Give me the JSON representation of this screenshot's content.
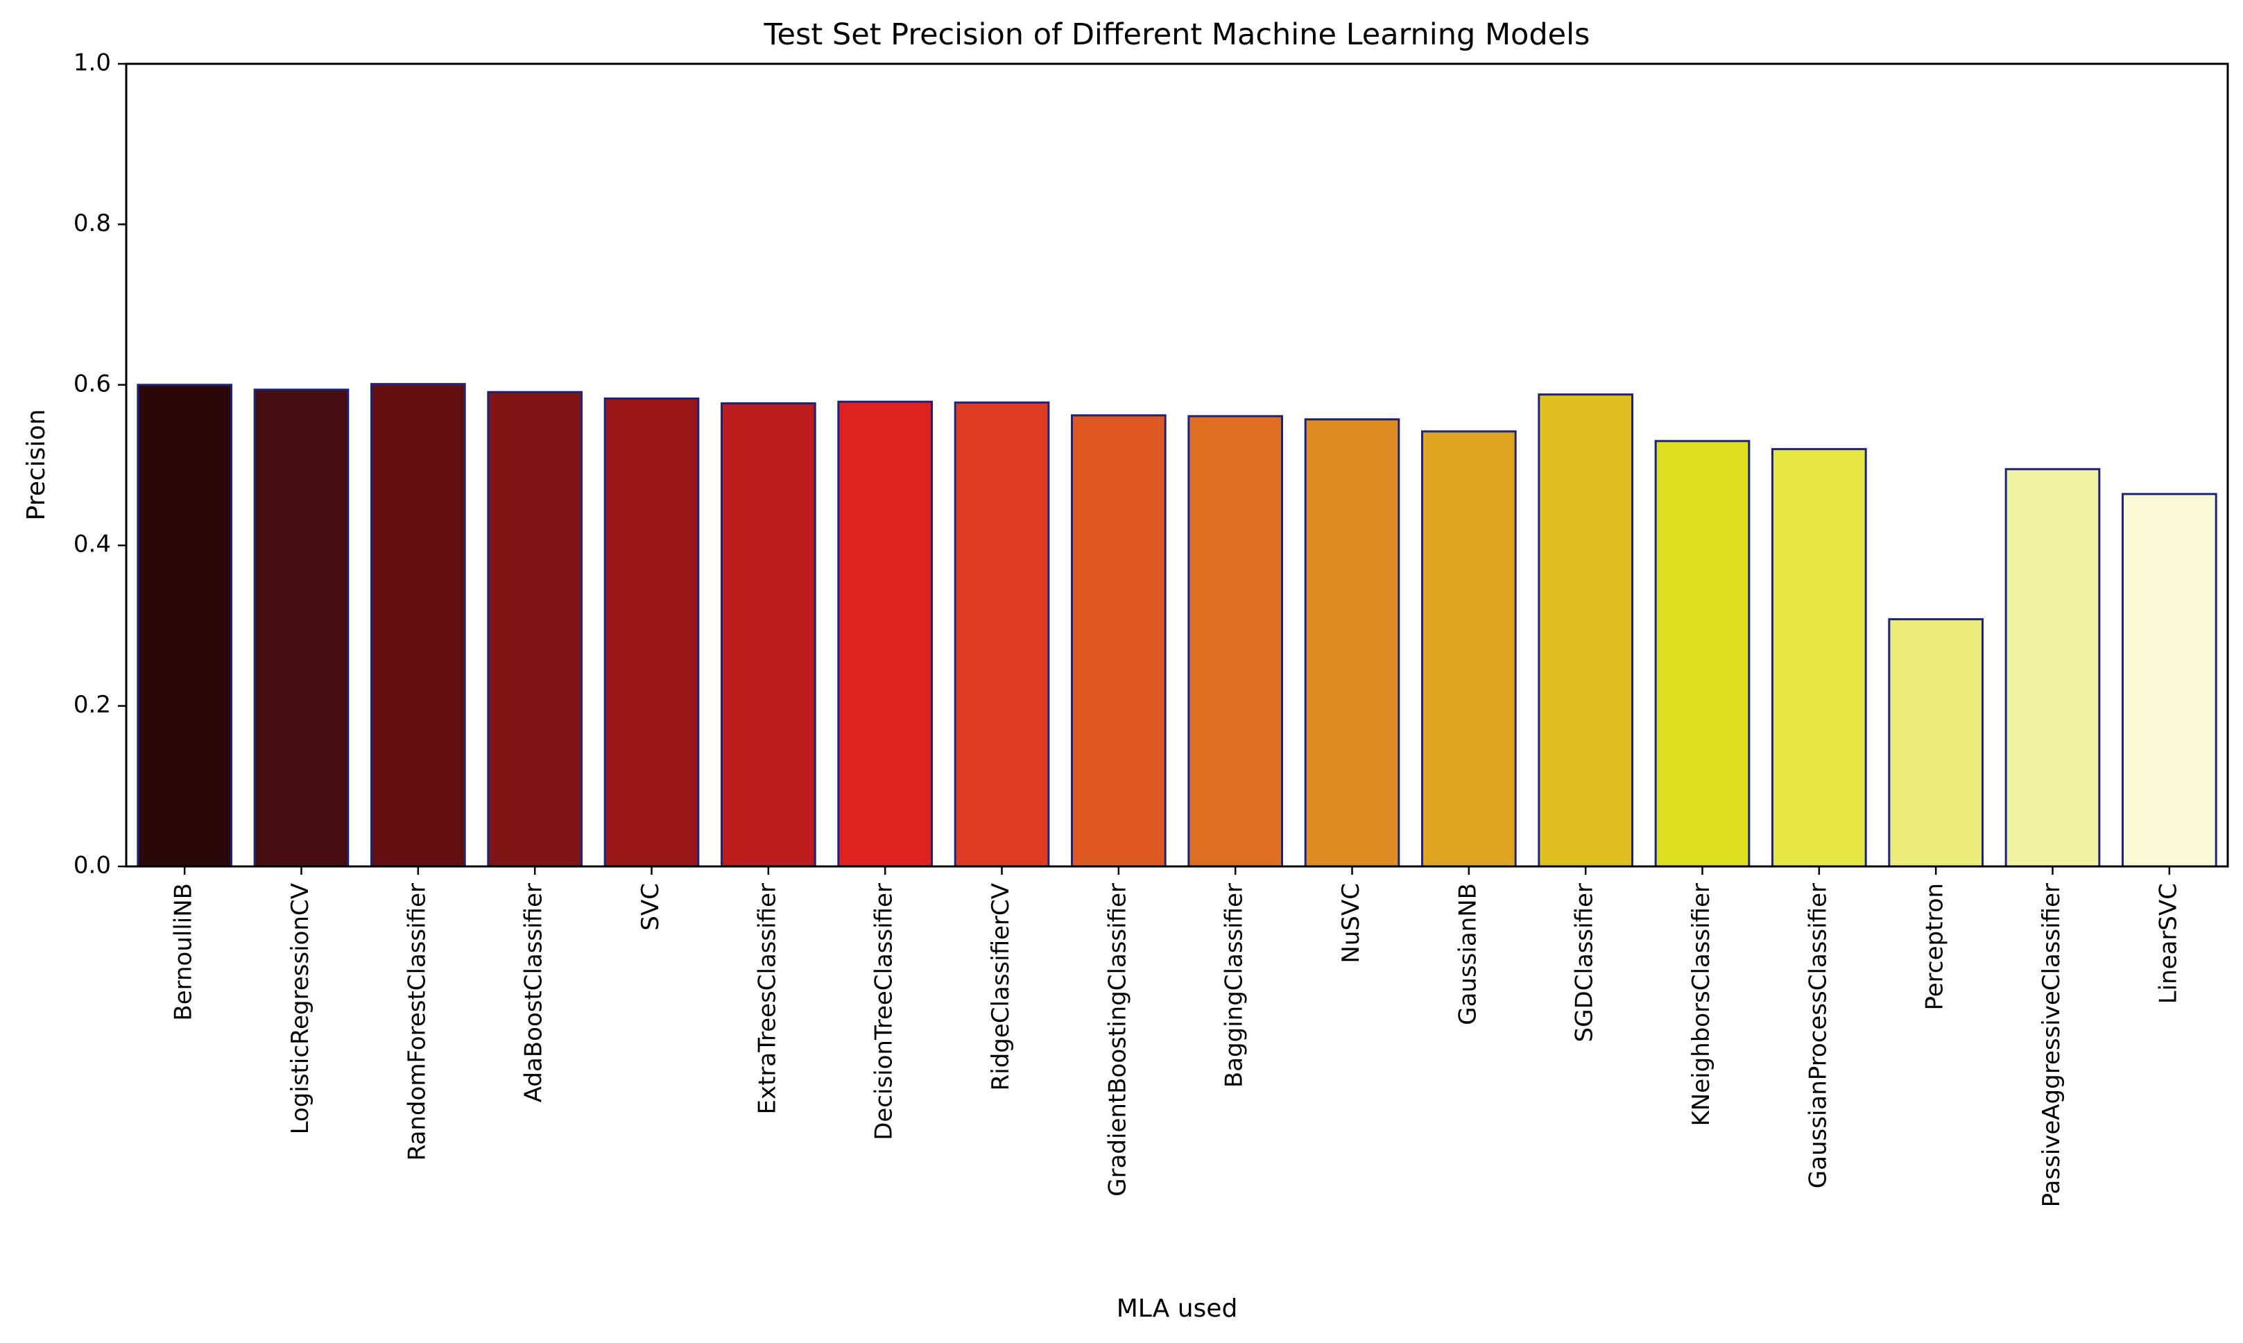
{
  "chart_data": {
    "type": "bar",
    "title": "Test Set Precision of Different Machine Learning Models",
    "xlabel": "MLA used",
    "ylabel": "Precision",
    "ylim": [
      0,
      1.0
    ],
    "yticks": [
      "0.0",
      "0.2",
      "0.4",
      "0.6",
      "0.8",
      "1.0"
    ],
    "grid": false,
    "categories": [
      "BernoulliNB",
      "LogisticRegressionCV",
      "RandomForestClassifier",
      "AdaBoostClassifier",
      "SVC",
      "ExtraTreesClassifier",
      "DecisionTreeClassifier",
      "RidgeClassifierCV",
      "GradientBoostingClassifier",
      "BaggingClassifier",
      "NuSVC",
      "GaussianNB",
      "SGDClassifier",
      "KNeighborsClassifier",
      "GaussianProcessClassifier",
      "Perceptron",
      "PassiveAggressiveClassifier",
      "LinearSVC"
    ],
    "values": [
      0.6,
      0.594,
      0.601,
      0.591,
      0.583,
      0.577,
      0.579,
      0.578,
      0.562,
      0.561,
      0.557,
      0.542,
      0.588,
      0.53,
      0.52,
      0.308,
      0.495,
      0.464
    ],
    "bar_colors": [
      "#2a0808",
      "#450d0f",
      "#620f12",
      "#7e1414",
      "#9a1718",
      "#bb1c1c",
      "#de2220",
      "#de3c22",
      "#dd5822",
      "#de6f22",
      "#df8c22",
      "#dfa422",
      "#dfbf22",
      "#dfdf22",
      "#e6e645",
      "#ebeb78",
      "#f2f2a5",
      "#fafad6"
    ],
    "edge_color": "#1a237e"
  }
}
